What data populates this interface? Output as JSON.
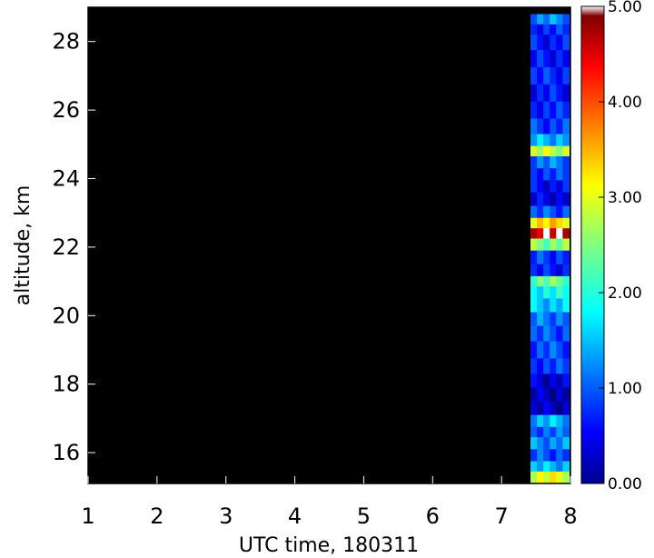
{
  "chart_data": {
    "type": "heatmap",
    "title": "",
    "xlabel": "UTC time, 180311",
    "ylabel": "altitude, km",
    "xlim": [
      1,
      8
    ],
    "ylim": [
      15.1,
      29.0
    ],
    "x_ticks": [
      1,
      2,
      3,
      4,
      5,
      6,
      7,
      8
    ],
    "y_ticks": [
      16,
      18,
      20,
      22,
      24,
      26,
      28
    ],
    "colorbar": {
      "range": [
        0,
        5
      ],
      "ticks": [
        0,
        1,
        2,
        3,
        4,
        5
      ],
      "tick_labels": [
        "0.00",
        "1.00",
        "2.00",
        "3.00",
        "4.00",
        "5.00"
      ],
      "colormap": "jet"
    },
    "background_color": "#000000",
    "data_time_range": [
      7.42,
      7.98
    ],
    "profile": [
      {
        "alt": 28.6,
        "v": 1.3
      },
      {
        "alt": 28.4,
        "v": 0.8
      },
      {
        "alt": 28.0,
        "v": 0.7
      },
      {
        "alt": 27.5,
        "v": 0.7
      },
      {
        "alt": 27.0,
        "v": 0.8
      },
      {
        "alt": 26.5,
        "v": 0.7
      },
      {
        "alt": 26.0,
        "v": 0.8
      },
      {
        "alt": 25.5,
        "v": 0.9
      },
      {
        "alt": 25.1,
        "v": 1.5
      },
      {
        "alt": 24.8,
        "v": 2.8
      },
      {
        "alt": 24.5,
        "v": 1.2
      },
      {
        "alt": 24.1,
        "v": 0.9
      },
      {
        "alt": 23.8,
        "v": 0.6
      },
      {
        "alt": 23.4,
        "v": 0.5
      },
      {
        "alt": 23.0,
        "v": 1.0
      },
      {
        "alt": 22.7,
        "v": 3.3
      },
      {
        "alt": 22.4,
        "v": 4.8
      },
      {
        "alt": 22.1,
        "v": 2.5
      },
      {
        "alt": 21.7,
        "v": 0.9
      },
      {
        "alt": 21.3,
        "v": 0.7
      },
      {
        "alt": 21.0,
        "v": 2.4
      },
      {
        "alt": 20.7,
        "v": 1.9
      },
      {
        "alt": 20.3,
        "v": 1.6
      },
      {
        "alt": 19.9,
        "v": 1.2
      },
      {
        "alt": 19.5,
        "v": 1.0
      },
      {
        "alt": 19.0,
        "v": 1.0
      },
      {
        "alt": 18.5,
        "v": 0.9
      },
      {
        "alt": 18.1,
        "v": 0.4
      },
      {
        "alt": 17.7,
        "v": 0.3
      },
      {
        "alt": 17.3,
        "v": 0.3
      },
      {
        "alt": 16.9,
        "v": 1.5
      },
      {
        "alt": 16.6,
        "v": 1.1
      },
      {
        "alt": 16.3,
        "v": 1.3
      },
      {
        "alt": 15.9,
        "v": 1.0
      },
      {
        "alt": 15.6,
        "v": 1.5
      },
      {
        "alt": 15.3,
        "v": 3.0
      }
    ]
  }
}
